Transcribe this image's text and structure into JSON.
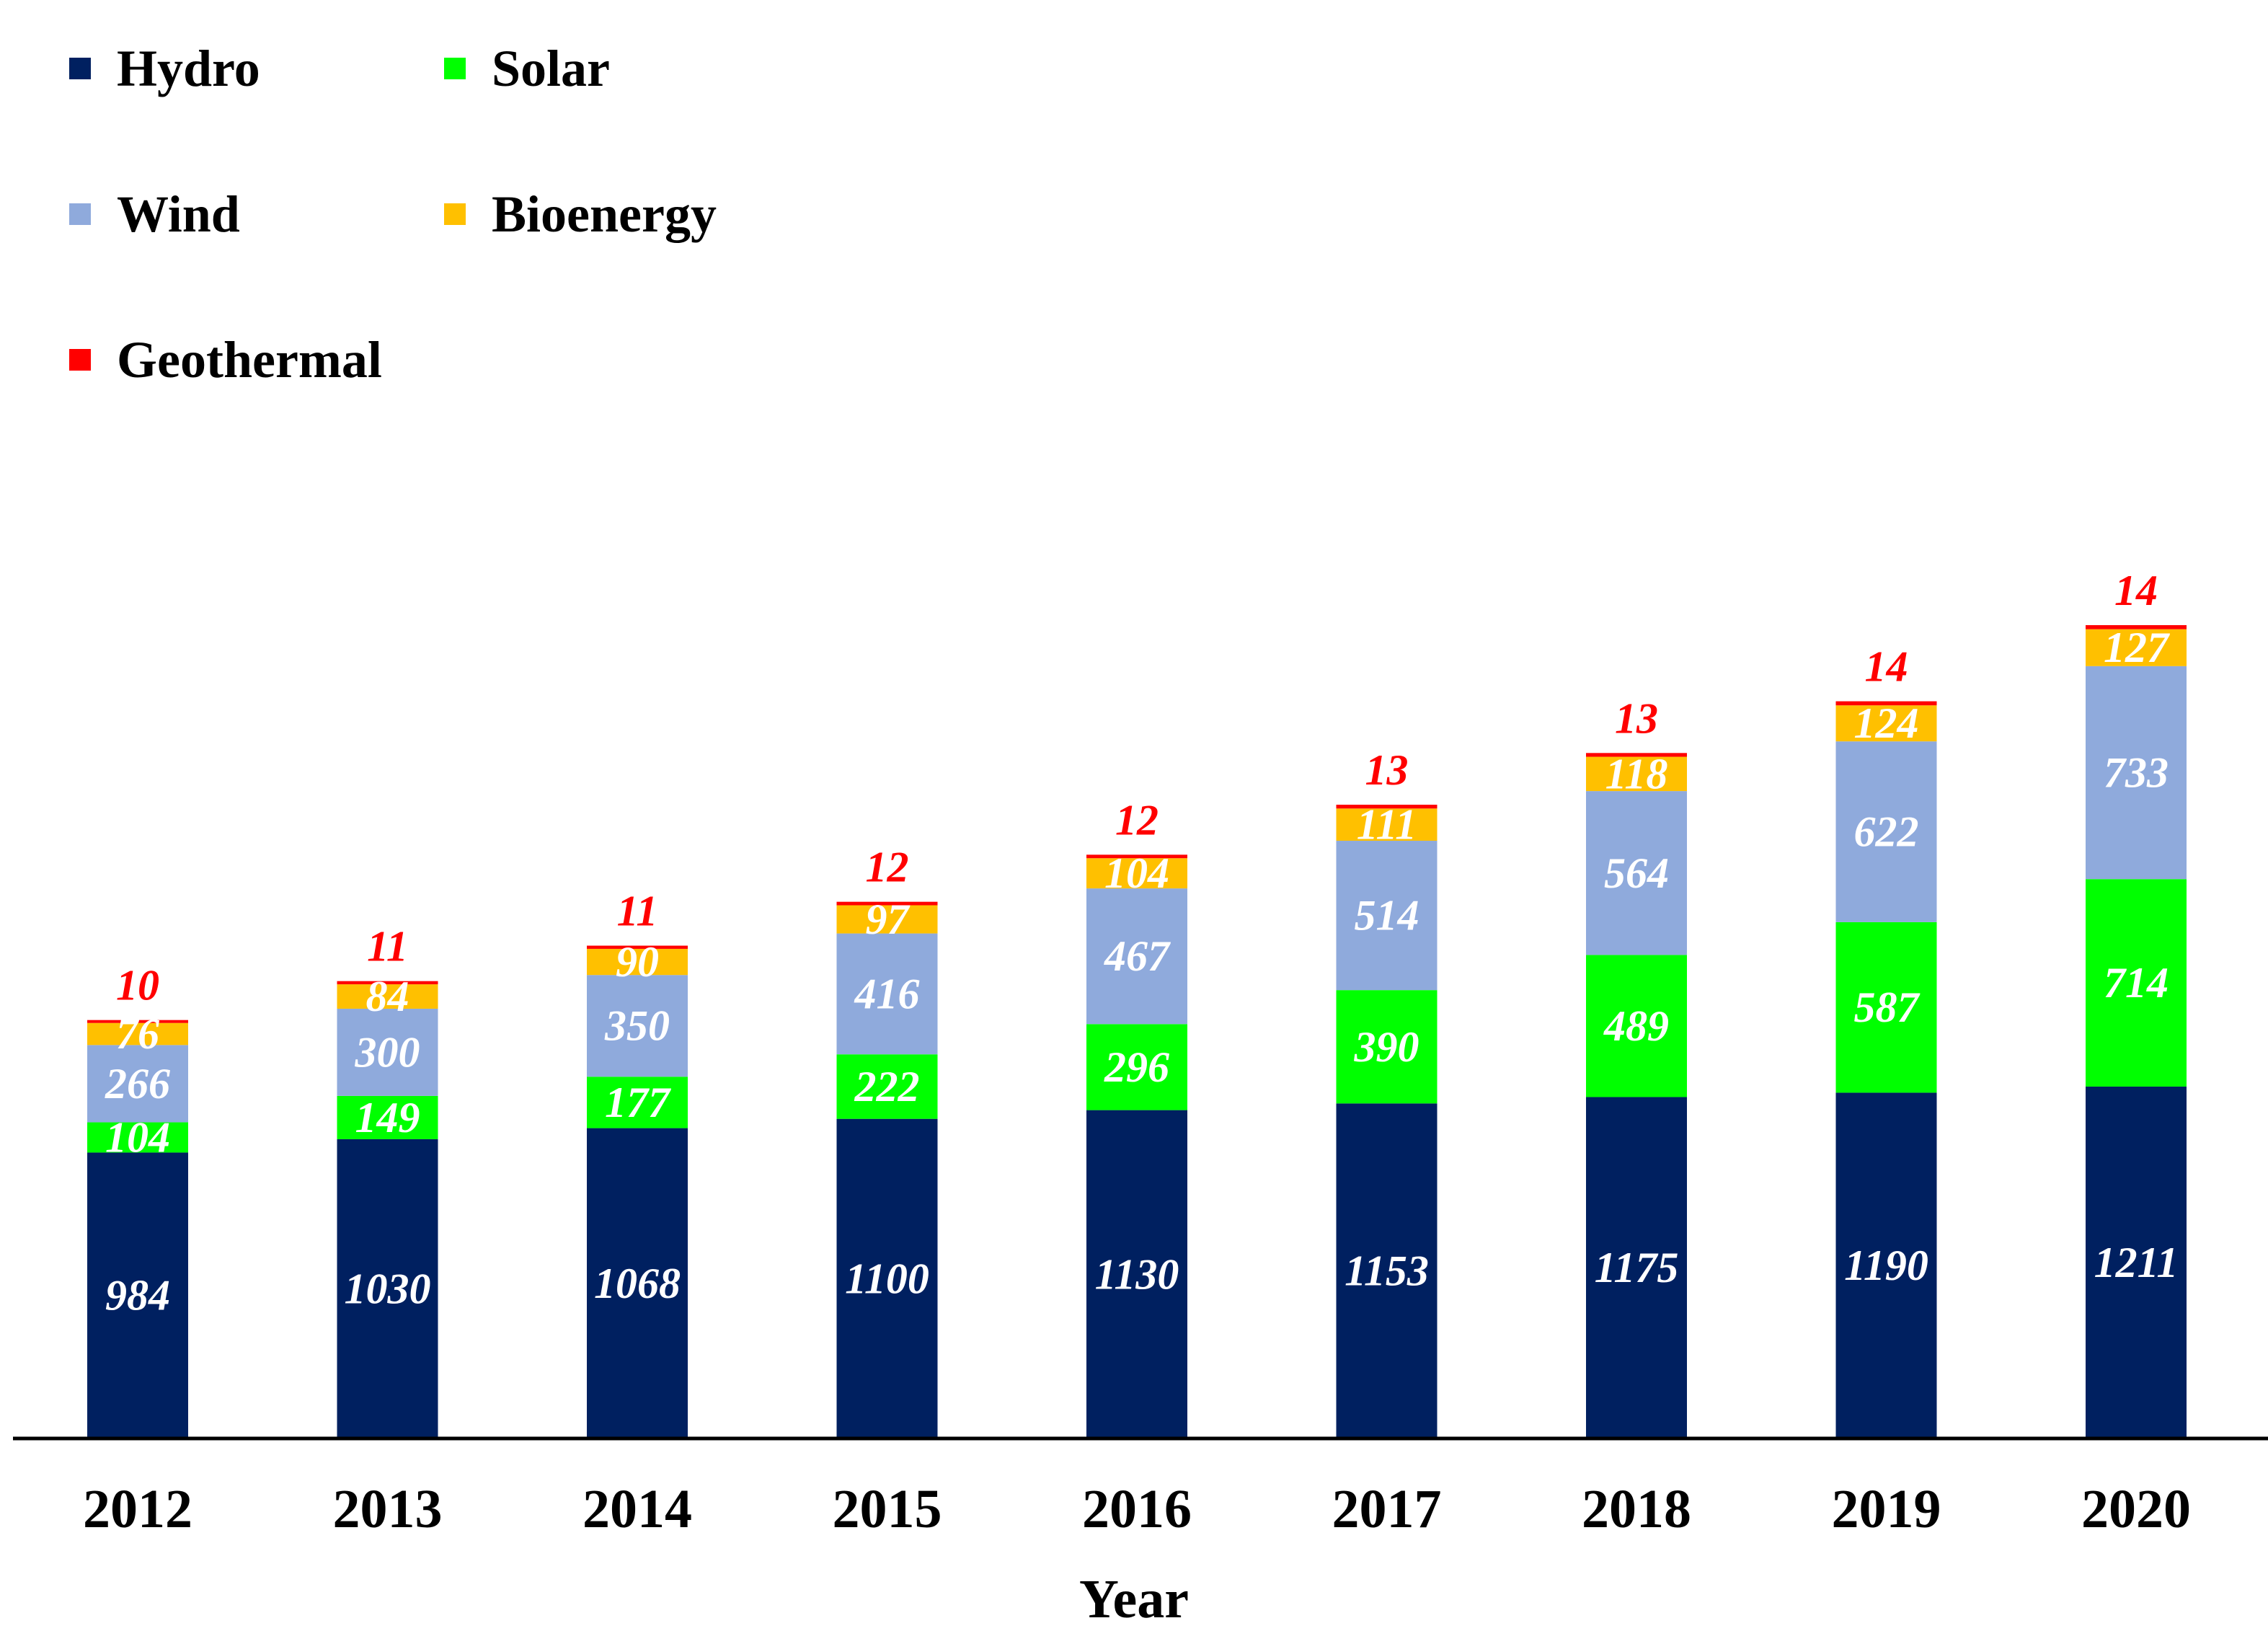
{
  "chart_data": {
    "type": "bar",
    "stacked": true,
    "xlabel": "Year",
    "ylabel": "",
    "categories": [
      "2012",
      "2013",
      "2014",
      "2015",
      "2016",
      "2017",
      "2018",
      "2019",
      "2020"
    ],
    "series": [
      {
        "name": "Hydro",
        "color": "#002060",
        "label_color": "#ffffff",
        "values": [
          984,
          1030,
          1068,
          1100,
          1130,
          1153,
          1175,
          1190,
          1211
        ]
      },
      {
        "name": "Solar",
        "color": "#00ff00",
        "label_color": "#ffffff",
        "values": [
          104,
          149,
          177,
          222,
          296,
          390,
          489,
          587,
          714
        ]
      },
      {
        "name": "Wind",
        "color": "#8faadc",
        "label_color": "#ffffff",
        "values": [
          266,
          300,
          350,
          416,
          467,
          514,
          564,
          622,
          733
        ]
      },
      {
        "name": "Bioenergy",
        "color": "#ffc000",
        "label_color": "#ffffff",
        "values": [
          76,
          84,
          90,
          97,
          104,
          111,
          118,
          124,
          127
        ]
      },
      {
        "name": "Geothermal",
        "color": "#ff0000",
        "label_color": "#ff0000",
        "values": [
          10,
          11,
          11,
          12,
          12,
          13,
          13,
          14,
          14
        ]
      }
    ],
    "legend_position": "top-left",
    "grid": false
  }
}
